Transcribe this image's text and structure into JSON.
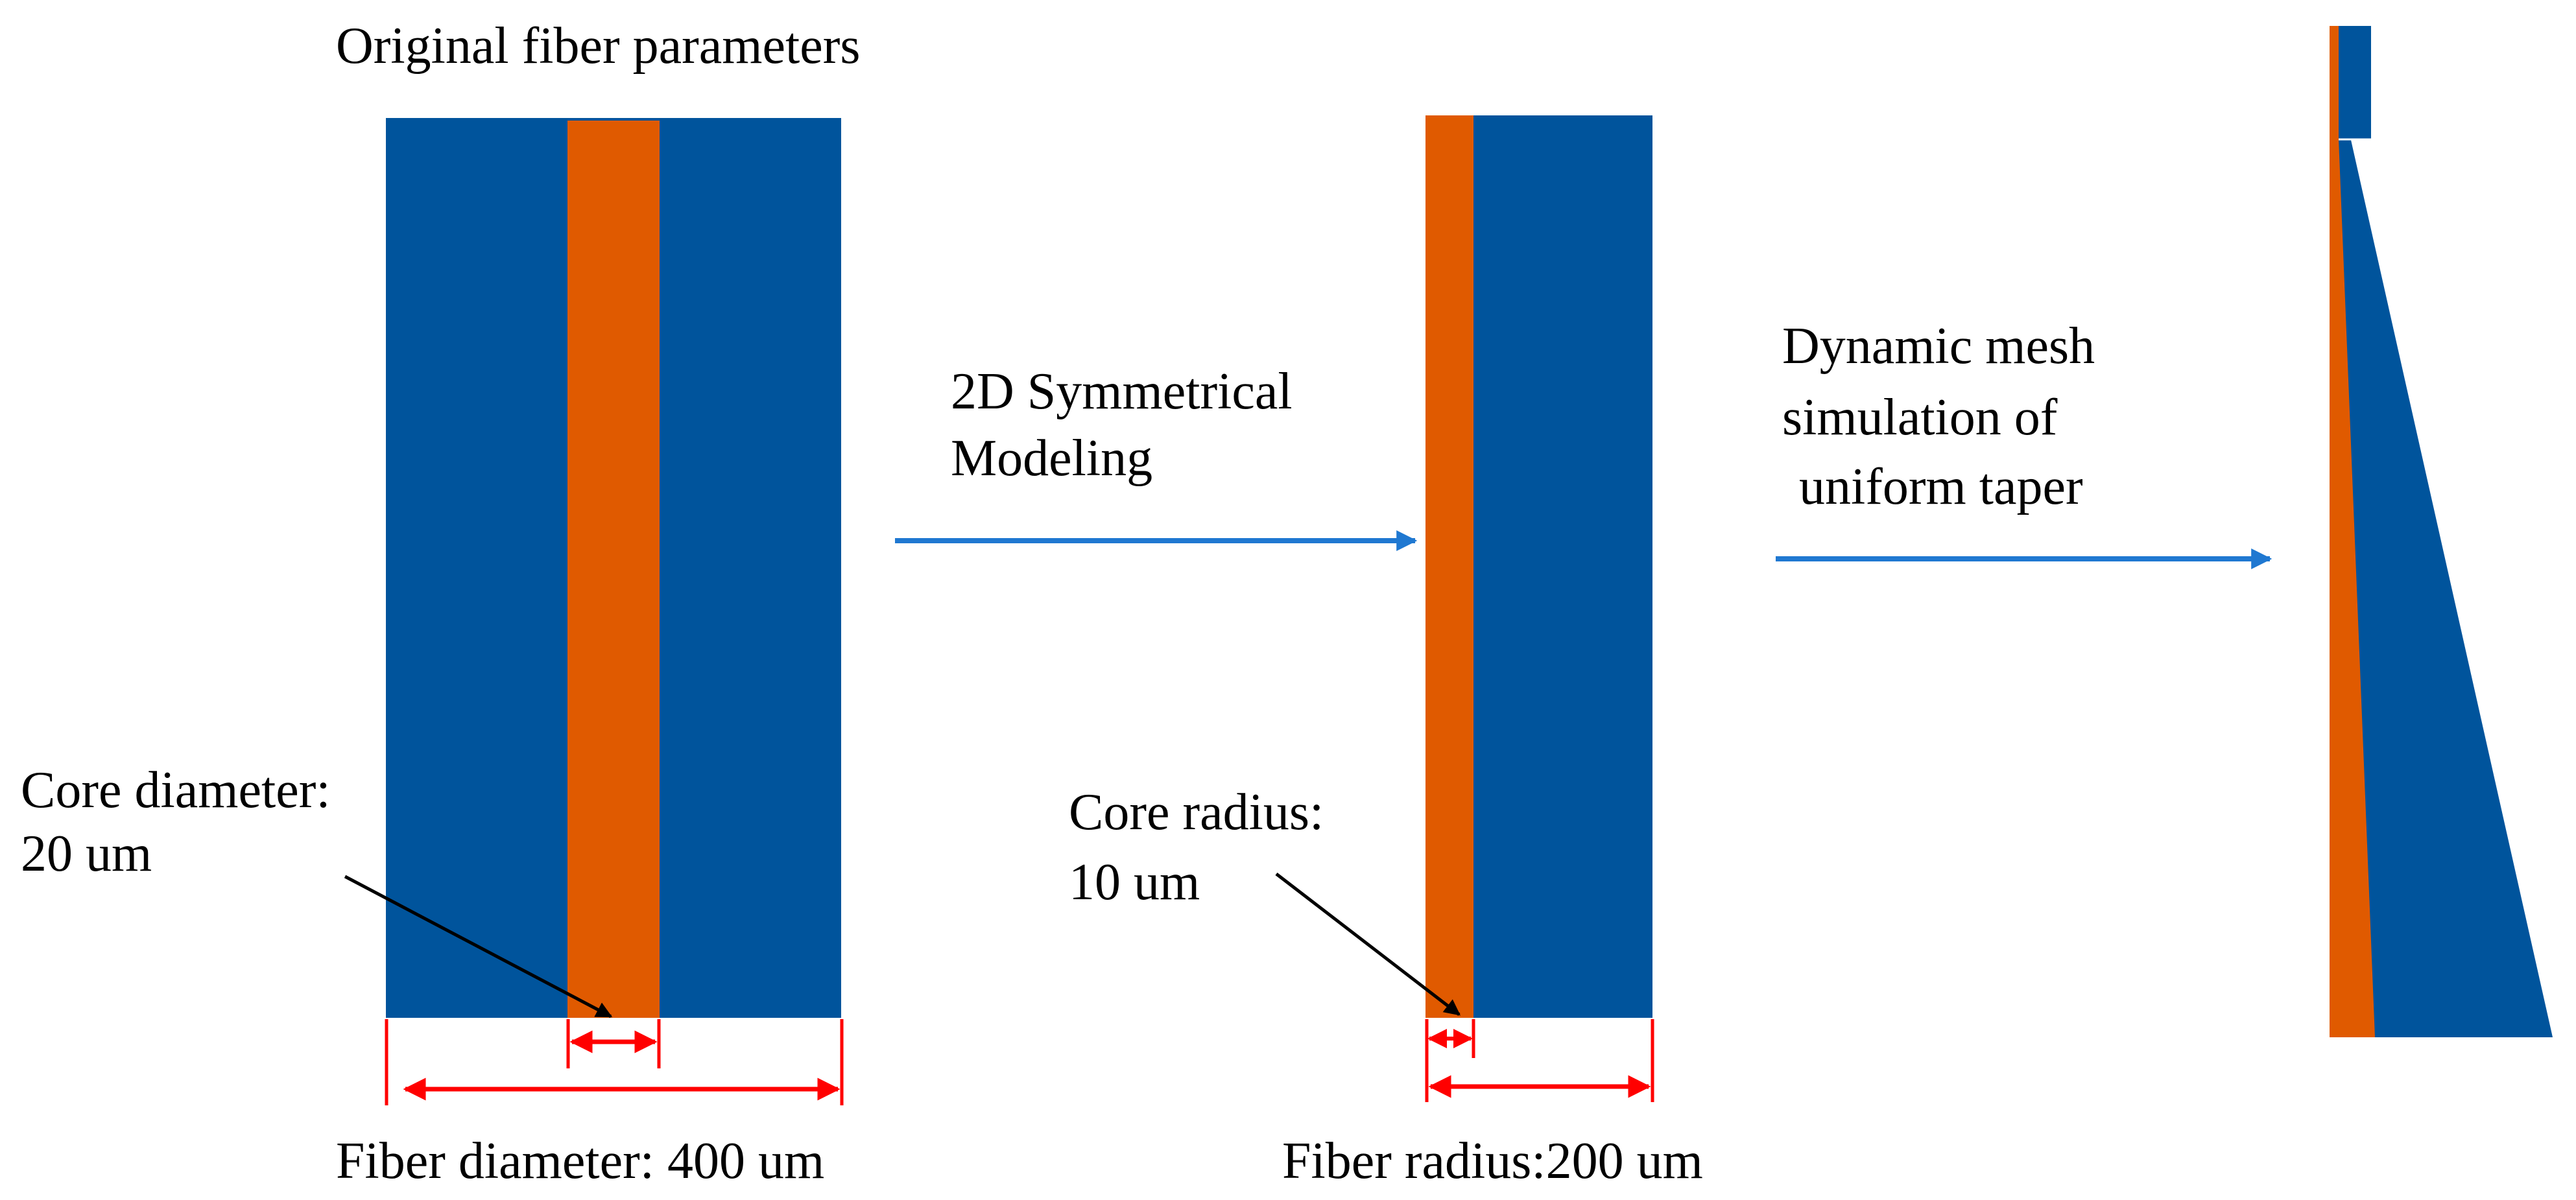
{
  "colors": {
    "cladding": "#00549C",
    "core": "#E05A00",
    "dimension": "#FF0000",
    "process_arrow": "#1F78D1",
    "pointer": "#000000"
  },
  "labels": {
    "original_title": "Original fiber parameters",
    "core_diameter_line1": "Core diameter:",
    "core_diameter_line2": "20 um",
    "fiber_diameter": "Fiber diameter: 400 um",
    "modeling_line1": "2D Symmetrical",
    "modeling_line2": "Modeling",
    "core_radius_line1": "Core radius:",
    "core_radius_line2": "10 um",
    "fiber_radius": "Fiber radius:200 um",
    "taper_line1": "Dynamic mesh",
    "taper_line2": "simulation of",
    "taper_line3": "uniform taper"
  }
}
